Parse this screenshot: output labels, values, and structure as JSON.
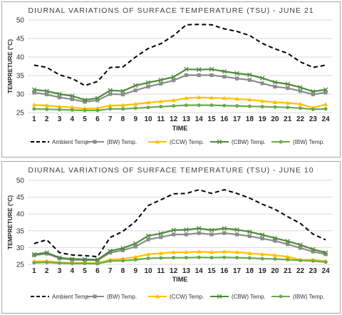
{
  "chart_data": [
    {
      "type": "line",
      "title": "DIURNAL VARIATIONS OF SURFACE TEMPERATURE (TSU) - JUNE 21",
      "xlabel": "TIME",
      "ylabel": "TEMPRETURE (°C)",
      "categories": [
        "1",
        "2",
        "3",
        "4",
        "5",
        "6",
        "7",
        "8",
        "9",
        "10",
        "11",
        "12",
        "13",
        "14",
        "15",
        "16",
        "17",
        "18",
        "19",
        "20",
        "21",
        "22",
        "23",
        "24"
      ],
      "ylim": [
        25,
        50
      ],
      "yticks": [
        "25",
        "30",
        "35",
        "40",
        "45",
        "50"
      ],
      "legend_position": "bottom",
      "series": [
        {
          "name": "Ambient Temp.",
          "color": "#000000",
          "style": "dashed",
          "marker": "none",
          "values": [
            37.8,
            37.2,
            35.2,
            34.2,
            32.3,
            33.4,
            37.2,
            37.3,
            40.0,
            42.3,
            43.6,
            45.8,
            48.7,
            48.8,
            48.7,
            47.6,
            46.9,
            45.8,
            43.7,
            42.2,
            41.0,
            38.7,
            37.2,
            37.8
          ]
        },
        {
          "name": "(BW) Temp.",
          "color": "#8c8c8c",
          "style": "solid",
          "marker": "square",
          "values": [
            30.4,
            29.9,
            29.1,
            28.6,
            27.9,
            28.3,
            30.0,
            29.9,
            31.0,
            32.0,
            32.8,
            33.7,
            35.1,
            35.1,
            35.1,
            34.7,
            34.2,
            33.8,
            32.9,
            32.0,
            31.6,
            30.8,
            29.9,
            30.4
          ]
        },
        {
          "name": "(CCW) Temp.",
          "color": "#ffc000",
          "style": "solid",
          "marker": "triangle",
          "values": [
            27.1,
            26.9,
            26.6,
            26.4,
            26.1,
            26.2,
            26.9,
            27.0,
            27.3,
            27.7,
            28.0,
            28.3,
            28.9,
            29.1,
            29.0,
            28.9,
            28.7,
            28.5,
            28.1,
            27.8,
            27.6,
            27.3,
            26.3,
            27.2
          ]
        },
        {
          "name": "(CBW) Temp.",
          "color": "#4e8a3c",
          "style": "solid",
          "marker": "x",
          "values": [
            31.2,
            30.8,
            30.0,
            29.5,
            28.4,
            28.9,
            31.0,
            30.8,
            32.3,
            33.1,
            33.8,
            34.6,
            36.7,
            36.6,
            36.7,
            36.1,
            35.6,
            35.2,
            34.3,
            33.2,
            32.7,
            31.8,
            30.7,
            31.2
          ]
        },
        {
          "name": "(IBW) Temp.",
          "color": "#6aa84f",
          "style": "solid",
          "marker": "circle",
          "values": [
            26.0,
            25.9,
            25.8,
            25.7,
            25.6,
            25.6,
            26.0,
            26.0,
            26.2,
            26.4,
            26.6,
            26.8,
            27.0,
            27.0,
            27.0,
            26.9,
            26.8,
            26.7,
            26.6,
            26.5,
            26.4,
            26.2,
            25.9,
            26.0
          ]
        }
      ]
    },
    {
      "type": "line",
      "title": "DIURNAL VARIATIONS OF SURFACE TEMPERATURE (TSU) - JUNE 10",
      "xlabel": "TIME",
      "ylabel": "TEMPRETURE (°C)",
      "categories": [
        "1",
        "2",
        "3",
        "4",
        "5",
        "6",
        "7",
        "8",
        "9",
        "10",
        "11",
        "12",
        "13",
        "14",
        "15",
        "16",
        "17",
        "18",
        "19",
        "20",
        "21",
        "22",
        "23",
        "24"
      ],
      "ylim": [
        25,
        50
      ],
      "yticks": [
        "25",
        "30",
        "35",
        "40",
        "45",
        "50"
      ],
      "legend_position": "bottom",
      "series": [
        {
          "name": "Ambient Temp.",
          "color": "#000000",
          "style": "dashed",
          "marker": "none",
          "values": [
            31.2,
            32.3,
            28.5,
            27.8,
            27.6,
            27.3,
            33.0,
            34.8,
            37.8,
            42.5,
            44.2,
            46.0,
            46.1,
            47.2,
            46.1,
            47.2,
            46.1,
            44.7,
            42.9,
            41.4,
            39.2,
            37.2,
            34.0,
            32.3
          ]
        },
        {
          "name": "(BW) Temp.",
          "color": "#8c8c8c",
          "style": "solid",
          "marker": "square",
          "values": [
            27.7,
            28.2,
            26.8,
            26.4,
            26.3,
            26.2,
            28.5,
            29.2,
            30.3,
            32.4,
            33.1,
            33.9,
            33.9,
            34.3,
            33.9,
            34.3,
            33.9,
            33.4,
            32.7,
            32.0,
            31.0,
            29.9,
            28.8,
            28.0
          ]
        },
        {
          "name": "(CCW) Temp.",
          "color": "#ffc000",
          "style": "solid",
          "marker": "triangle",
          "values": [
            25.9,
            26.0,
            25.6,
            25.5,
            25.4,
            25.4,
            26.4,
            26.7,
            27.2,
            28.0,
            28.3,
            28.6,
            28.6,
            28.8,
            28.6,
            28.8,
            28.6,
            28.3,
            28.0,
            27.7,
            27.3,
            26.3,
            26.4,
            26.0
          ]
        },
        {
          "name": "(CBW) Temp.",
          "color": "#4e8a3c",
          "style": "solid",
          "marker": "x",
          "values": [
            28.0,
            28.5,
            27.0,
            26.6,
            26.5,
            26.4,
            29.0,
            29.8,
            31.2,
            33.5,
            34.2,
            35.2,
            35.3,
            35.7,
            35.2,
            35.7,
            35.3,
            34.7,
            33.8,
            32.8,
            31.9,
            30.8,
            29.5,
            28.5
          ]
        },
        {
          "name": "(IBW) Temp.",
          "color": "#6aa84f",
          "style": "solid",
          "marker": "circle",
          "values": [
            25.5,
            25.6,
            25.4,
            25.3,
            25.3,
            25.2,
            26.0,
            26.1,
            26.4,
            26.8,
            26.9,
            27.0,
            27.0,
            27.1,
            27.0,
            27.1,
            27.0,
            26.9,
            26.7,
            26.6,
            26.4,
            26.2,
            26.0,
            25.7
          ]
        }
      ]
    }
  ]
}
